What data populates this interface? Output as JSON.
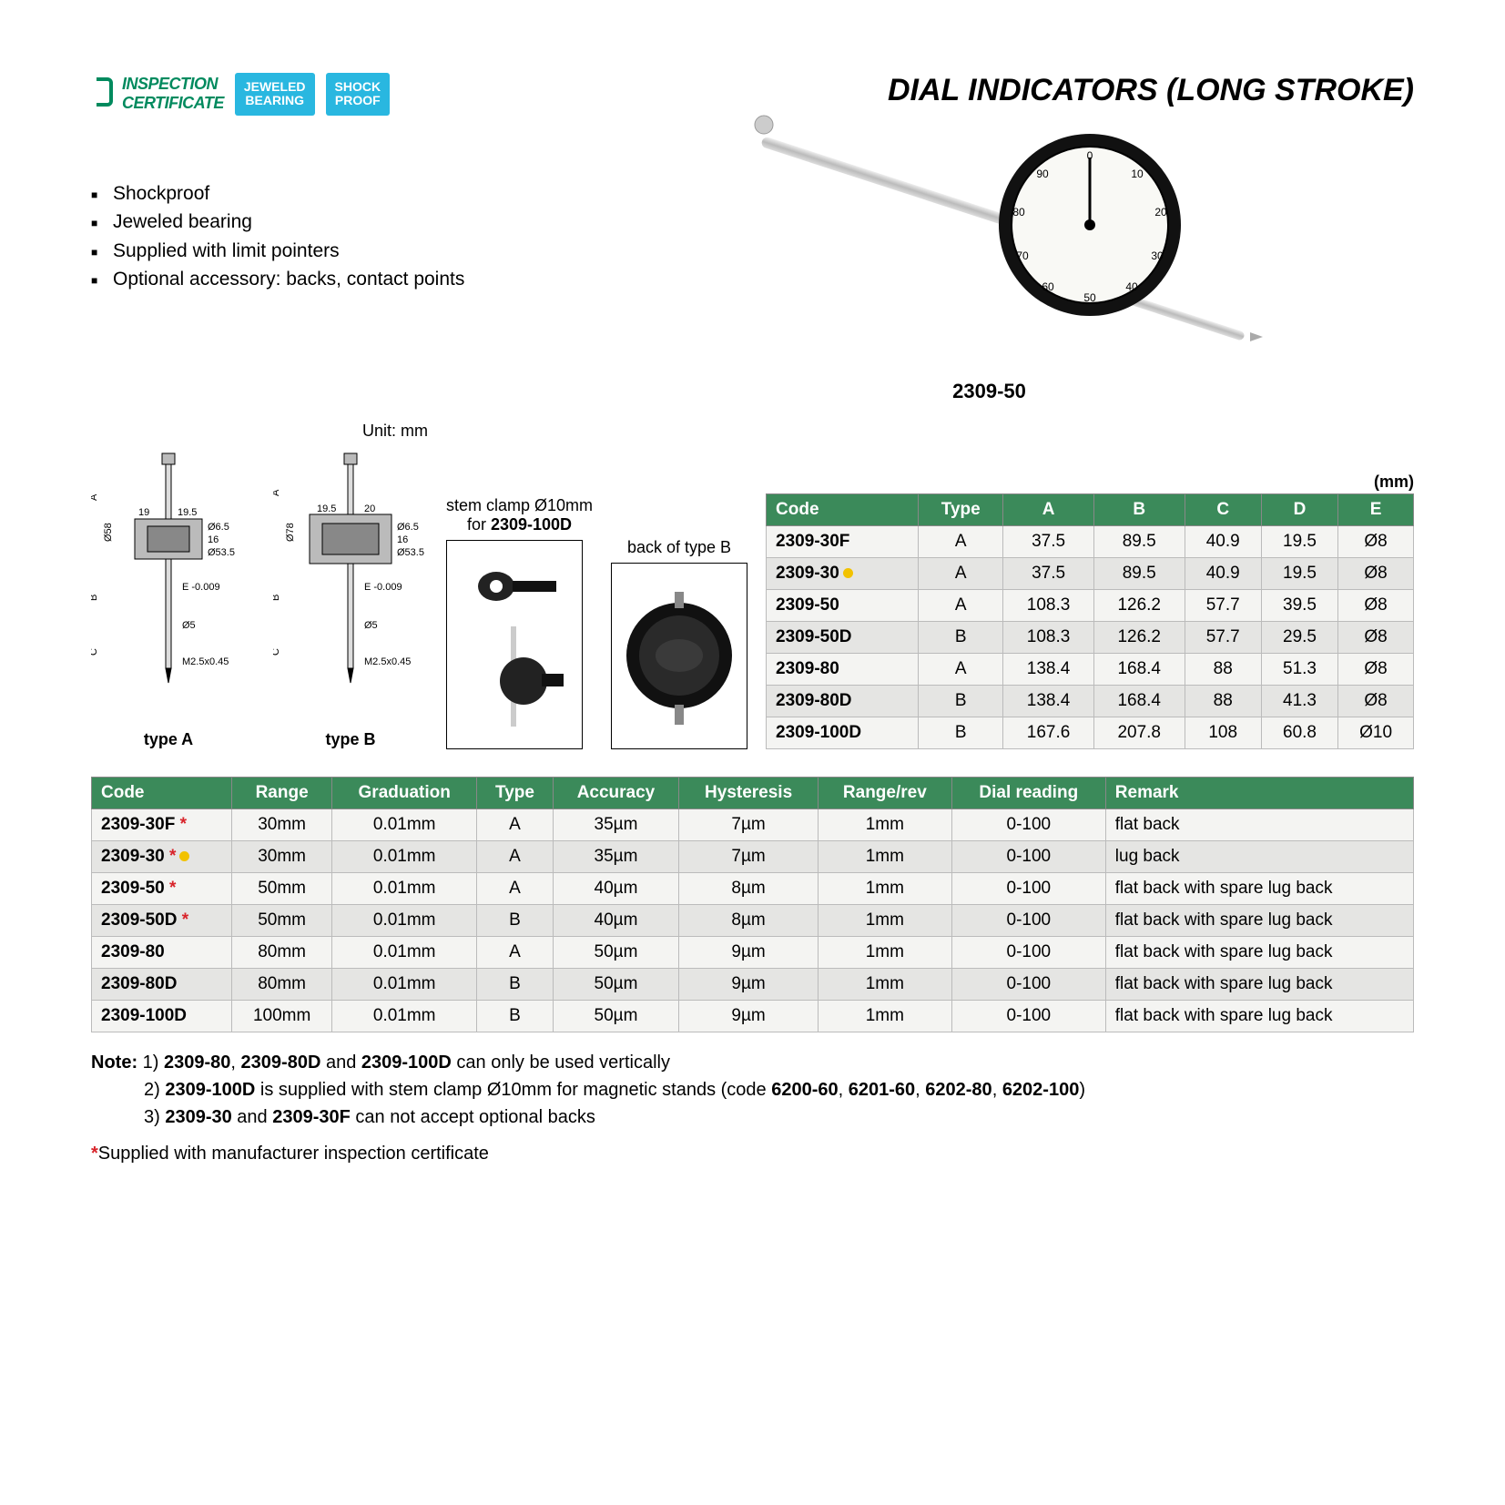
{
  "title": "DIAL INDICATORS (LONG STROKE)",
  "badges": {
    "cert_line1": "INSPECTION",
    "cert_line2": "CERTIFICATE",
    "cert_color": "#008a5e",
    "pill1_line1": "JEWELED",
    "pill1_line2": "BEARING",
    "pill2_line1": "SHOCK",
    "pill2_line2": "PROOF",
    "pill_bg": "#29b7e0"
  },
  "features": [
    "Shockproof",
    "Jeweled bearing",
    "Supplied with limit pointers",
    "Optional accessory: backs, contact points"
  ],
  "product_model": "2309-50",
  "unit_label": "Unit: mm",
  "type_a_caption": "type A",
  "type_b_caption": "type B",
  "diagram_dims": {
    "typeA": {
      "body_dia": "Ø58",
      "top_offset_left": "19",
      "top_offset_right": "19.5",
      "pin_dia": "Ø6.5",
      "inner": "16",
      "case_dia": "Ø53.5",
      "E": "E -0.009",
      "stem_dia": "Ø5",
      "thread": "M2.5x0.45"
    },
    "typeB": {
      "body_dia": "Ø78",
      "top_offset_left": "19.5",
      "top_offset_right": "20",
      "pin_dia": "Ø6.5",
      "inner": "16",
      "case_dia": "Ø53.5",
      "E": "E -0.009",
      "stem_dia": "Ø5",
      "thread": "M2.5x0.45"
    }
  },
  "callouts": {
    "stem_clamp_line1": "stem clamp Ø10mm",
    "stem_clamp_line2": "for 2309-100D",
    "back_type_b": "back of type B"
  },
  "mm_label": "(mm)",
  "dim_table": {
    "header_bg": "#3b8a5a",
    "columns": [
      "Code",
      "Type",
      "A",
      "B",
      "C",
      "D",
      "E"
    ],
    "rows": [
      {
        "code": "2309-30F",
        "dot": false,
        "cells": [
          "A",
          "37.5",
          "89.5",
          "40.9",
          "19.5",
          "Ø8"
        ]
      },
      {
        "code": "2309-30",
        "dot": true,
        "cells": [
          "A",
          "37.5",
          "89.5",
          "40.9",
          "19.5",
          "Ø8"
        ]
      },
      {
        "code": "2309-50",
        "dot": false,
        "cells": [
          "A",
          "108.3",
          "126.2",
          "57.7",
          "39.5",
          "Ø8"
        ]
      },
      {
        "code": "2309-50D",
        "dot": false,
        "cells": [
          "B",
          "108.3",
          "126.2",
          "57.7",
          "29.5",
          "Ø8"
        ]
      },
      {
        "code": "2309-80",
        "dot": false,
        "cells": [
          "A",
          "138.4",
          "168.4",
          "88",
          "51.3",
          "Ø8"
        ]
      },
      {
        "code": "2309-80D",
        "dot": false,
        "cells": [
          "B",
          "138.4",
          "168.4",
          "88",
          "41.3",
          "Ø8"
        ]
      },
      {
        "code": "2309-100D",
        "dot": false,
        "cells": [
          "B",
          "167.6",
          "207.8",
          "108",
          "60.8",
          "Ø10"
        ]
      }
    ]
  },
  "main_table": {
    "columns": [
      "Code",
      "Range",
      "Graduation",
      "Type",
      "Accuracy",
      "Hysteresis",
      "Range/rev",
      "Dial reading",
      "Remark"
    ],
    "rows": [
      {
        "code": "2309-30F",
        "star": true,
        "dot": false,
        "range": "30mm",
        "grad": "0.01mm",
        "type": "A",
        "acc": "35µm",
        "hys": "7µm",
        "rr": "1mm",
        "dial": "0-100",
        "remark": "flat back"
      },
      {
        "code": "2309-30",
        "star": true,
        "dot": true,
        "range": "30mm",
        "grad": "0.01mm",
        "type": "A",
        "acc": "35µm",
        "hys": "7µm",
        "rr": "1mm",
        "dial": "0-100",
        "remark": "lug back"
      },
      {
        "code": "2309-50",
        "star": true,
        "dot": false,
        "range": "50mm",
        "grad": "0.01mm",
        "type": "A",
        "acc": "40µm",
        "hys": "8µm",
        "rr": "1mm",
        "dial": "0-100",
        "remark": "flat back with spare lug back"
      },
      {
        "code": "2309-50D",
        "star": true,
        "dot": false,
        "range": "50mm",
        "grad": "0.01mm",
        "type": "B",
        "acc": "40µm",
        "hys": "8µm",
        "rr": "1mm",
        "dial": "0-100",
        "remark": "flat back with spare lug back"
      },
      {
        "code": "2309-80",
        "star": false,
        "dot": false,
        "range": "80mm",
        "grad": "0.01mm",
        "type": "A",
        "acc": "50µm",
        "hys": "9µm",
        "rr": "1mm",
        "dial": "0-100",
        "remark": "flat back with spare lug back"
      },
      {
        "code": "2309-80D",
        "star": false,
        "dot": false,
        "range": "80mm",
        "grad": "0.01mm",
        "type": "B",
        "acc": "50µm",
        "hys": "9µm",
        "rr": "1mm",
        "dial": "0-100",
        "remark": "flat back with spare lug back"
      },
      {
        "code": "2309-100D",
        "star": false,
        "dot": false,
        "range": "100mm",
        "grad": "0.01mm",
        "type": "B",
        "acc": "50µm",
        "hys": "9µm",
        "rr": "1mm",
        "dial": "0-100",
        "remark": "flat back with spare lug back"
      }
    ]
  },
  "notes": {
    "label": "Note:",
    "n1_pre": "1) ",
    "n1_b1": "2309-80",
    "n1_mid1": ", ",
    "n1_b2": "2309-80D",
    "n1_mid2": " and ",
    "n1_b3": "2309-100D",
    "n1_post": " can only be used vertically",
    "n2_pre": "2) ",
    "n2_b1": "2309-100D",
    "n2_mid": " is supplied with stem clamp Ø10mm for magnetic stands (code ",
    "n2_b2": "6200-60",
    "n2_c1": ", ",
    "n2_b3": "6201-60",
    "n2_c2": ", ",
    "n2_b4": "6202-80",
    "n2_c3": ", ",
    "n2_b5": "6202-100",
    "n2_post": ")",
    "n3_pre": "3) ",
    "n3_b1": "2309-30",
    "n3_mid": " and ",
    "n3_b2": "2309-30F",
    "n3_post": " can not accept optional backs"
  },
  "supplied_text": "Supplied with manufacturer inspection certificate"
}
